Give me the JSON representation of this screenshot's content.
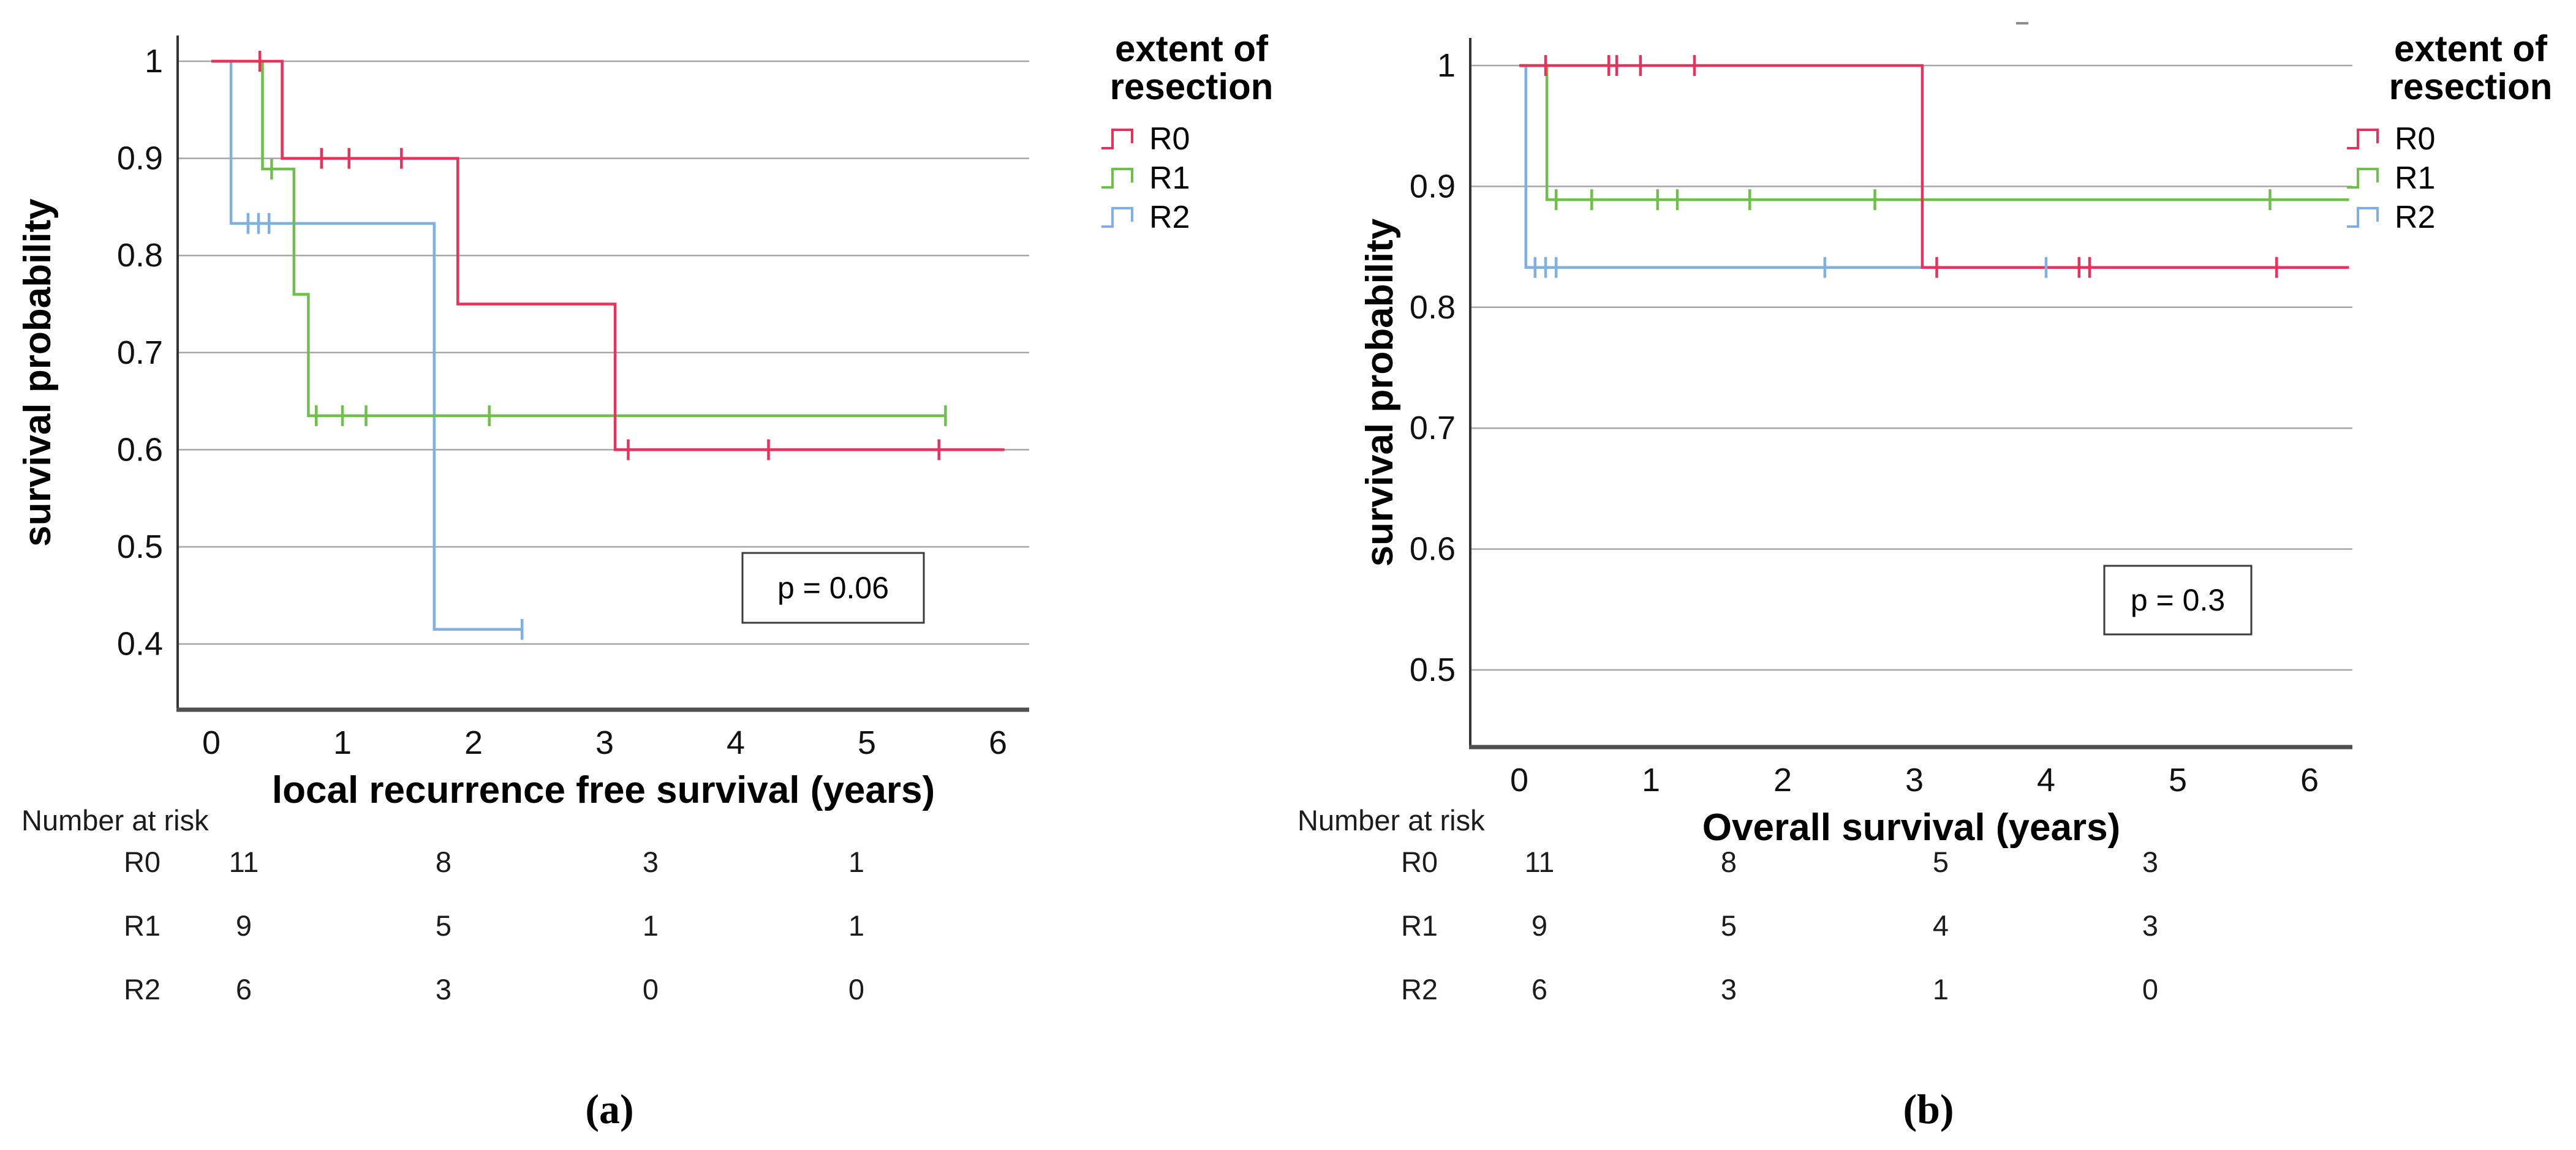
{
  "figure": {
    "captions": {
      "a": "(a)",
      "b": "(b)"
    },
    "style": {
      "r0_color": "#e8315b",
      "r1_color": "#6fc04a",
      "r2_color": "#7fb0e3",
      "grid_color": "#a6a6a6",
      "axis_left_color": "#333333",
      "axis_bottom_color": "#4f4f4f",
      "text_color": "#111111",
      "pbox_border_color": "#3c3c3c"
    }
  },
  "chart_data": [
    {
      "panel": "a",
      "type": "line",
      "subtype": "kaplan-meier-step",
      "title": "",
      "xlabel": "local recurrence free survival (years)",
      "ylabel": "survival probability",
      "xticks": [
        0,
        1,
        2,
        3,
        4,
        5,
        6
      ],
      "ytick_values": [
        1,
        0.9,
        0.8,
        0.7,
        0.6,
        0.5,
        0.4
      ],
      "ytick_labels": [
        "1",
        "0.9",
        "0.8",
        "0.7",
        "0.6",
        "0.5",
        "0.4"
      ],
      "xlim": [
        -0.26,
        6.24
      ],
      "ylim": [
        0.33,
        1.03
      ],
      "grid": true,
      "legend_position": "right",
      "legend_title_lines": [
        "extent of",
        "resection"
      ],
      "p_label": "p = 0.06",
      "series": [
        {
          "name": "R0",
          "color": "#e8315b",
          "vertices": [
            [
              0,
              1
            ],
            [
              0.54,
              1
            ],
            [
              0.54,
              0.9
            ],
            [
              1.88,
              0.9
            ],
            [
              1.88,
              0.75
            ],
            [
              3.08,
              0.75
            ],
            [
              3.08,
              0.6
            ],
            [
              6.05,
              0.6
            ]
          ],
          "censors": [
            [
              0.37,
              1
            ],
            [
              0.84,
              0.9
            ],
            [
              1.05,
              0.9
            ],
            [
              1.45,
              0.9
            ],
            [
              3.18,
              0.6
            ],
            [
              4.25,
              0.6
            ],
            [
              5.55,
              0.6
            ]
          ]
        },
        {
          "name": "R1",
          "color": "#6fc04a",
          "vertices": [
            [
              0,
              1
            ],
            [
              0.39,
              1
            ],
            [
              0.39,
              0.889
            ],
            [
              0.63,
              0.889
            ],
            [
              0.63,
              0.76
            ],
            [
              0.74,
              0.76
            ],
            [
              0.74,
              0.635
            ],
            [
              5.6,
              0.635
            ]
          ],
          "censors": [
            [
              0.46,
              0.889
            ],
            [
              0.8,
              0.635
            ],
            [
              1.0,
              0.635
            ],
            [
              1.18,
              0.635
            ],
            [
              2.12,
              0.635
            ],
            [
              5.6,
              0.635
            ]
          ]
        },
        {
          "name": "R2",
          "color": "#7fb0e3",
          "vertices": [
            [
              0,
              1
            ],
            [
              0.15,
              1
            ],
            [
              0.15,
              0.833
            ],
            [
              1.7,
              0.833
            ],
            [
              1.7,
              0.415
            ],
            [
              2.37,
              0.415
            ]
          ],
          "censors": [
            [
              0.28,
              0.833
            ],
            [
              0.36,
              0.833
            ],
            [
              0.44,
              0.833
            ],
            [
              2.37,
              0.415
            ]
          ]
        }
      ],
      "risk_table": {
        "title": "Number at risk",
        "rows": [
          {
            "name": "R0",
            "values": [
              "11",
              "8",
              "3",
              "1"
            ]
          },
          {
            "name": "R1",
            "values": [
              "9",
              "5",
              "1",
              "1"
            ]
          },
          {
            "name": "R2",
            "values": [
              "6",
              "3",
              "0",
              "0"
            ]
          }
        ]
      },
      "caption": "(a)"
    },
    {
      "panel": "b",
      "type": "line",
      "subtype": "kaplan-meier-step",
      "title": "",
      "xlabel": "Overall survival (years)",
      "ylabel": "survival probability",
      "xticks": [
        0,
        1,
        2,
        3,
        4,
        5,
        6
      ],
      "ytick_values": [
        1,
        0.9,
        0.8,
        0.7,
        0.6,
        0.5
      ],
      "ytick_labels": [
        "1",
        "0.9",
        "0.8",
        "0.7",
        "0.6",
        "0.5"
      ],
      "xlim": [
        -0.41,
        6.32
      ],
      "ylim": [
        0.44,
        1.05
      ],
      "grid": true,
      "legend_position": "right",
      "legend_title_lines": [
        "extent of",
        "resection"
      ],
      "p_label": "p = 0.3",
      "series": [
        {
          "name": "R0",
          "color": "#e8315b",
          "vertices": [
            [
              0,
              1
            ],
            [
              3.06,
              1
            ],
            [
              3.06,
              0.833
            ],
            [
              6.3,
              0.833
            ]
          ],
          "censors": [
            [
              0.2,
              1
            ],
            [
              0.68,
              1
            ],
            [
              0.74,
              1
            ],
            [
              0.92,
              1
            ],
            [
              1.33,
              1
            ],
            [
              3.17,
              0.833
            ],
            [
              4.25,
              0.833
            ],
            [
              4.33,
              0.833
            ],
            [
              5.75,
              0.833
            ]
          ]
        },
        {
          "name": "R1",
          "color": "#6fc04a",
          "vertices": [
            [
              0,
              1
            ],
            [
              0.21,
              1
            ],
            [
              0.21,
              0.889
            ],
            [
              6.3,
              0.889
            ]
          ],
          "censors": [
            [
              0.28,
              0.889
            ],
            [
              0.55,
              0.889
            ],
            [
              1.05,
              0.889
            ],
            [
              1.2,
              0.889
            ],
            [
              1.75,
              0.889
            ],
            [
              2.7,
              0.889
            ],
            [
              5.7,
              0.889
            ]
          ]
        },
        {
          "name": "R2",
          "color": "#7fb0e3",
          "vertices": [
            [
              0,
              1
            ],
            [
              0.05,
              1
            ],
            [
              0.05,
              0.833
            ],
            [
              4.35,
              0.833
            ]
          ],
          "censors": [
            [
              0.12,
              0.833
            ],
            [
              0.2,
              0.833
            ],
            [
              0.28,
              0.833
            ],
            [
              2.32,
              0.833
            ],
            [
              4.0,
              0.833
            ]
          ]
        }
      ],
      "risk_table": {
        "title": "Number at risk",
        "rows": [
          {
            "name": "R0",
            "values": [
              "11",
              "8",
              "5",
              "3"
            ]
          },
          {
            "name": "R1",
            "values": [
              "9",
              "5",
              "4",
              "3"
            ]
          },
          {
            "name": "R2",
            "values": [
              "6",
              "3",
              "1",
              "0"
            ]
          }
        ]
      },
      "caption": "(b)"
    }
  ]
}
